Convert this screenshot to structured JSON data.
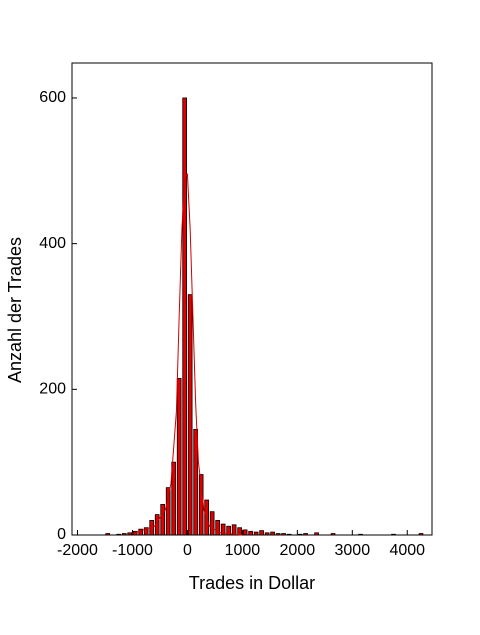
{
  "chart_data": {
    "type": "histogram",
    "x_label": "Trades in Dollar",
    "y_label": "Anzahl der Trades",
    "bins": [
      -1500,
      -1400,
      -1300,
      -1200,
      -1100,
      -1000,
      -900,
      -800,
      -700,
      -600,
      -500,
      -400,
      -300,
      -200,
      -100,
      0,
      100,
      200,
      300,
      400,
      500,
      600,
      700,
      800,
      900,
      1000,
      1100,
      1200,
      1300,
      1400,
      1500,
      1600,
      1700,
      1800,
      1900,
      2000,
      2100,
      2200,
      2300,
      2400,
      2500,
      2600,
      2700,
      2800,
      2900,
      3000,
      3100,
      3200,
      3300,
      3400,
      3500,
      3600,
      3700,
      3800,
      3900,
      4000,
      4100,
      4200,
      4300
    ],
    "values": [
      2,
      0,
      1,
      2,
      3,
      5,
      8,
      10,
      20,
      28,
      42,
      65,
      100,
      215,
      600,
      330,
      145,
      83,
      48,
      32,
      20,
      15,
      12,
      14,
      10,
      7,
      5,
      4,
      6,
      3,
      4,
      2,
      2,
      1,
      0,
      1,
      2,
      0,
      3,
      0,
      0,
      2,
      0,
      0,
      0,
      0,
      1,
      0,
      0,
      0,
      0,
      0,
      1,
      0,
      0,
      0,
      0,
      2
    ],
    "color": "#e00000",
    "fit": {
      "x": [
        -1000,
        -600,
        -400,
        -300,
        -200,
        -150,
        -100,
        -50,
        0,
        50,
        100,
        150,
        200,
        300,
        400,
        600,
        1000
      ],
      "values": [
        2,
        12,
        35,
        70,
        170,
        300,
        420,
        490,
        495,
        420,
        300,
        180,
        100,
        35,
        12,
        3,
        0
      ],
      "color": "#d00000"
    },
    "xlim": [
      -2100,
      4450
    ],
    "ylim": [
      0,
      648
    ],
    "xticks": [
      -2000,
      -1000,
      0,
      1000,
      2000,
      3000,
      4000
    ],
    "yticks": [
      0,
      200,
      400,
      600
    ]
  }
}
